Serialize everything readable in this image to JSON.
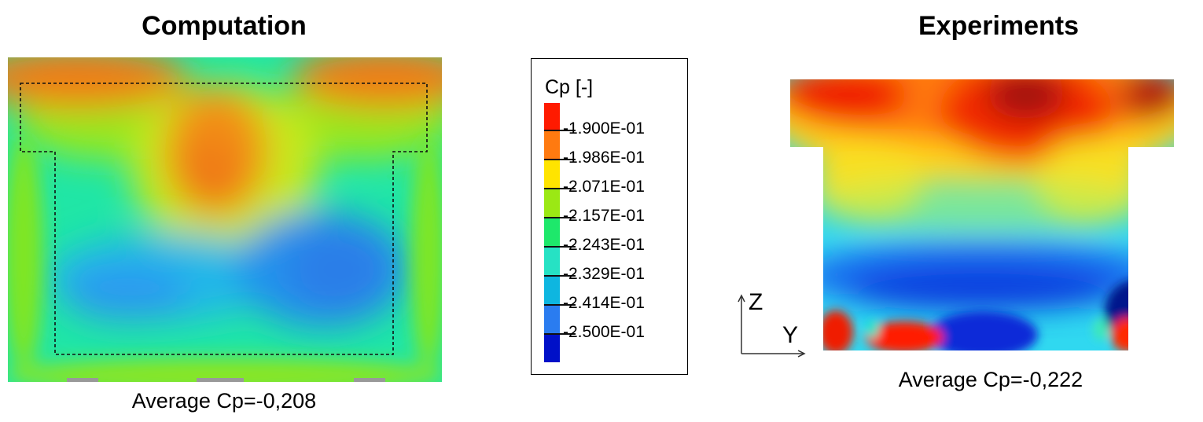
{
  "left_panel": {
    "title": "Computation",
    "caption": "Average Cp=-0,208"
  },
  "right_panel": {
    "title": "Experiments",
    "caption": "Average Cp=-0,222"
  },
  "legend": {
    "title": "Cp [-]",
    "ticks": [
      "-1.900E-01",
      "-1.986E-01",
      "-2.071E-01",
      "-2.157E-01",
      "-2.243E-01",
      "-2.329E-01",
      "-2.414E-01",
      "-2.500E-01"
    ],
    "colors": [
      "#ff1a00",
      "#ff7a10",
      "#ffe400",
      "#9be814",
      "#1ee86b",
      "#26e2c4",
      "#0eb6e0",
      "#2a7cf0",
      "#0010c8"
    ]
  },
  "axes": {
    "vertical": "Z",
    "horizontal": "Y"
  }
}
